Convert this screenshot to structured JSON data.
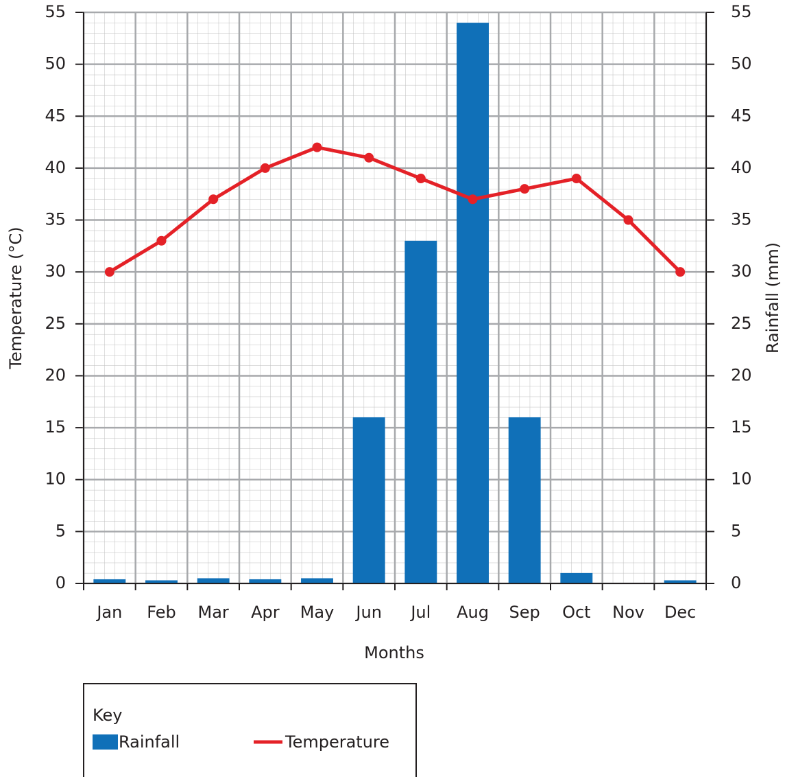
{
  "chart_data": {
    "type": "bar",
    "x_label": "Months",
    "y_label": "Temperature (°C)",
    "y2_label": "Rainfall (mm)",
    "categories": [
      "Jan",
      "Feb",
      "Mar",
      "Apr",
      "May",
      "Jun",
      "Jul",
      "Aug",
      "Sep",
      "Oct",
      "Nov",
      "Dec"
    ],
    "series": [
      {
        "name": "Rainfall",
        "type": "bar",
        "axis": "y2",
        "color": "#1070b8",
        "values": [
          0.4,
          0.3,
          0.5,
          0.4,
          0.5,
          16,
          33,
          54,
          16,
          1,
          0,
          0.3
        ]
      },
      {
        "name": "Temperature",
        "type": "line",
        "axis": "y",
        "color": "#e42127",
        "values": [
          30,
          33,
          37,
          40,
          42,
          41,
          39,
          37,
          38,
          39,
          35,
          30
        ]
      }
    ],
    "ylim": [
      0,
      55
    ],
    "yticks": [
      0,
      5,
      10,
      15,
      20,
      25,
      30,
      35,
      40,
      45,
      50,
      55
    ],
    "y2lim": [
      0,
      55
    ],
    "y2ticks": [
      0,
      5,
      10,
      15,
      20,
      25,
      30,
      35,
      40,
      45,
      50,
      55
    ],
    "grid": true,
    "legend_title": "Key"
  }
}
